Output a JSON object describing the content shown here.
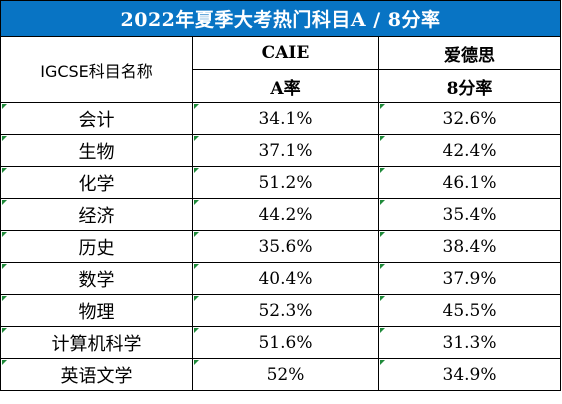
{
  "table": {
    "title": "2022年夏季大考热门科目A / 8分率",
    "subject_header": "IGCSE科目名称",
    "board_1": {
      "name": "CAIE",
      "metric": "A率"
    },
    "board_2": {
      "name": "爱德思",
      "metric": "8分率"
    },
    "rows": [
      {
        "subject": "会计",
        "caie": "34.1%",
        "edexcel": "32.6%"
      },
      {
        "subject": "生物",
        "caie": "37.1%",
        "edexcel": "42.4%"
      },
      {
        "subject": "化学",
        "caie": "51.2%",
        "edexcel": "46.1%"
      },
      {
        "subject": "经济",
        "caie": "44.2%",
        "edexcel": "35.4%"
      },
      {
        "subject": "历史",
        "caie": "35.6%",
        "edexcel": "38.4%"
      },
      {
        "subject": "数学",
        "caie": "40.4%",
        "edexcel": "37.9%"
      },
      {
        "subject": "物理",
        "caie": "52.3%",
        "edexcel": "45.5%"
      },
      {
        "subject": "计算机科学",
        "caie": "51.6%",
        "edexcel": "31.3%"
      },
      {
        "subject": "英语文学",
        "caie": "52%",
        "edexcel": "34.9%"
      }
    ],
    "colors": {
      "title_background": "#0874c4",
      "title_text": "#ffffff",
      "cell_marker": "#1f8a3a"
    }
  }
}
